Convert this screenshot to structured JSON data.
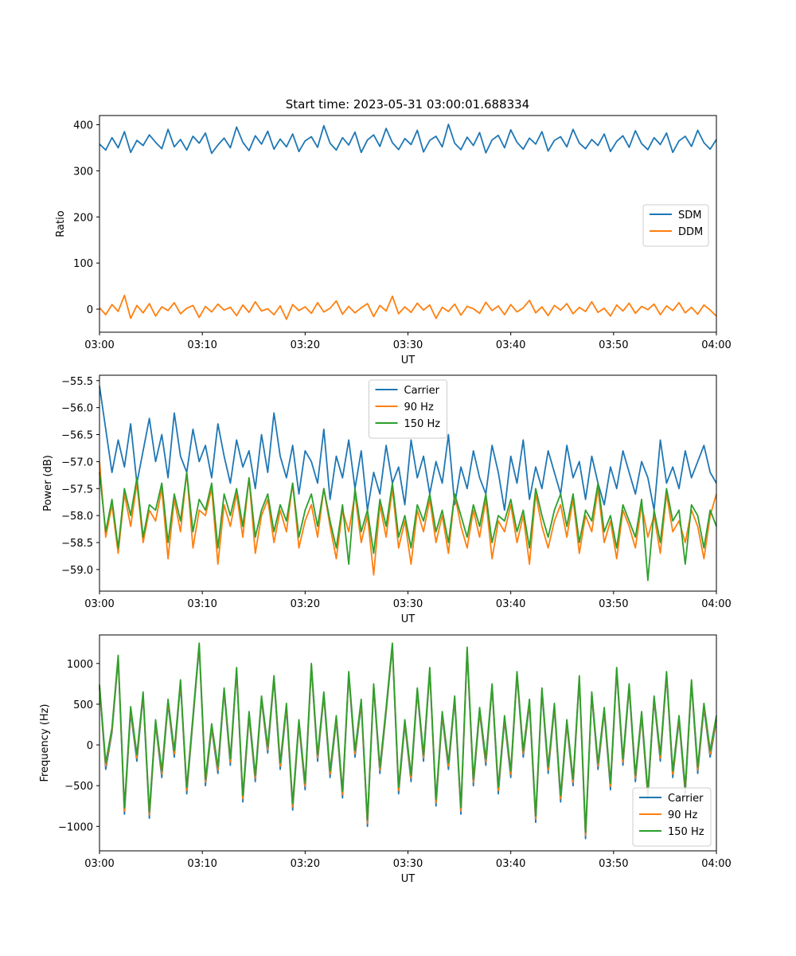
{
  "figure": {
    "title": "Start time: 2023-05-31 03:00:01.688334"
  },
  "colors": {
    "blue": "#1f77b4",
    "orange": "#ff7f0e",
    "green": "#2ca02c"
  },
  "chart_data": [
    {
      "type": "line",
      "xlabel": "UT",
      "ylabel": "Ratio",
      "xlim": [
        0,
        60
      ],
      "ylim": [
        -50,
        420
      ],
      "xticks": [
        0,
        10,
        20,
        30,
        40,
        50,
        60
      ],
      "xtick_labels": [
        "03:00",
        "03:10",
        "03:20",
        "03:30",
        "03:40",
        "03:50",
        "04:00"
      ],
      "yticks": [
        0,
        100,
        200,
        300,
        400
      ],
      "ytick_labels": [
        "0",
        "100",
        "200",
        "300",
        "400"
      ],
      "legend": "center-right",
      "grid": false,
      "series": [
        {
          "name": "SDM",
          "color": "#1f77b4",
          "values": [
            358,
            345,
            372,
            350,
            385,
            340,
            366,
            355,
            378,
            362,
            348,
            390,
            352,
            368,
            345,
            375,
            360,
            382,
            338,
            356,
            371,
            350,
            395,
            362,
            344,
            376,
            358,
            386,
            347,
            369,
            352,
            380,
            342,
            365,
            374,
            351,
            398,
            360,
            345,
            372,
            356,
            384,
            340,
            367,
            378,
            353,
            392,
            361,
            346,
            370,
            357,
            388,
            341,
            366,
            375,
            352,
            401,
            360,
            346,
            373,
            355,
            383,
            339,
            367,
            377,
            350,
            389,
            362,
            347,
            371,
            358,
            385,
            343,
            366,
            374,
            352,
            390,
            360,
            348,
            368,
            355,
            380,
            342,
            364,
            376,
            351,
            387,
            359,
            346,
            372,
            357,
            382,
            340,
            365,
            375,
            353,
            388,
            361,
            347,
            368
          ]
        },
        {
          "name": "DDM",
          "color": "#ff7f0e",
          "values": [
            3,
            -12,
            10,
            -5,
            30,
            -20,
            8,
            -8,
            12,
            -15,
            5,
            -3,
            14,
            -10,
            2,
            8,
            -18,
            6,
            -6,
            11,
            -2,
            4,
            -14,
            9,
            -7,
            16,
            -4,
            1,
            -12,
            7,
            -22,
            10,
            -3,
            5,
            -9,
            14,
            -6,
            2,
            18,
            -11,
            6,
            -8,
            3,
            12,
            -16,
            8,
            -4,
            28,
            -10,
            5,
            -7,
            13,
            -2,
            9,
            -20,
            4,
            -5,
            11,
            -13,
            6,
            1,
            -9,
            15,
            -3,
            7,
            -12,
            10,
            -6,
            3,
            19,
            -8,
            5,
            -14,
            8,
            -2,
            12,
            -10,
            4,
            -5,
            16,
            -7,
            2,
            -15,
            9,
            -4,
            13,
            -9,
            6,
            -1,
            11,
            -12,
            7,
            -3,
            14,
            -8,
            4,
            -11,
            9,
            -2,
            -15
          ]
        }
      ]
    },
    {
      "type": "line",
      "xlabel": "UT",
      "ylabel": "Power (dB)",
      "xlim": [
        0,
        60
      ],
      "ylim": [
        -59.4,
        -55.4
      ],
      "xticks": [
        0,
        10,
        20,
        30,
        40,
        50,
        60
      ],
      "xtick_labels": [
        "03:00",
        "03:10",
        "03:20",
        "03:30",
        "03:40",
        "03:50",
        "04:00"
      ],
      "yticks": [
        -55.5,
        -56.0,
        -56.5,
        -57.0,
        -57.5,
        -58.0,
        -58.5,
        -59.0
      ],
      "ytick_labels": [
        "−55.5",
        "−56.0",
        "−56.5",
        "−57.0",
        "−57.5",
        "−58.0",
        "−58.5",
        "−59.0"
      ],
      "legend": "top-center",
      "grid": false,
      "series": [
        {
          "name": "Carrier",
          "color": "#1f77b4",
          "values": [
            -55.6,
            -56.4,
            -57.2,
            -56.6,
            -57.1,
            -56.3,
            -57.4,
            -56.8,
            -56.2,
            -57.0,
            -56.5,
            -57.3,
            -56.1,
            -56.9,
            -57.2,
            -56.4,
            -57.0,
            -56.7,
            -57.3,
            -56.3,
            -56.9,
            -57.4,
            -56.6,
            -57.1,
            -56.8,
            -57.5,
            -56.5,
            -57.2,
            -56.1,
            -56.9,
            -57.3,
            -56.7,
            -57.6,
            -56.8,
            -57.0,
            -57.4,
            -56.4,
            -57.7,
            -56.9,
            -57.3,
            -56.6,
            -57.5,
            -56.8,
            -57.9,
            -57.2,
            -57.6,
            -56.7,
            -57.4,
            -57.1,
            -57.8,
            -56.6,
            -57.3,
            -56.9,
            -57.6,
            -57.0,
            -57.4,
            -56.5,
            -57.8,
            -57.1,
            -57.5,
            -56.8,
            -57.3,
            -57.6,
            -56.7,
            -57.2,
            -57.9,
            -56.9,
            -57.4,
            -56.6,
            -57.7,
            -57.1,
            -57.5,
            -56.8,
            -57.2,
            -57.6,
            -56.7,
            -57.3,
            -57.0,
            -57.7,
            -56.9,
            -57.4,
            -57.8,
            -57.1,
            -57.5,
            -56.8,
            -57.2,
            -57.6,
            -57.0,
            -57.3,
            -57.9,
            -56.6,
            -57.4,
            -57.1,
            -57.5,
            -56.8,
            -57.3,
            -57.0,
            -56.7,
            -57.2,
            -57.4
          ]
        },
        {
          "name": "90 Hz",
          "color": "#ff7f0e",
          "values": [
            -57.0,
            -58.4,
            -57.8,
            -58.7,
            -57.6,
            -58.2,
            -57.4,
            -58.5,
            -57.9,
            -58.1,
            -57.5,
            -58.8,
            -57.7,
            -58.3,
            -57.2,
            -58.6,
            -57.9,
            -58.0,
            -57.5,
            -58.9,
            -57.8,
            -58.2,
            -57.6,
            -58.4,
            -57.3,
            -58.7,
            -58.0,
            -57.7,
            -58.5,
            -57.9,
            -58.3,
            -57.4,
            -58.6,
            -58.1,
            -57.8,
            -58.4,
            -57.5,
            -58.2,
            -58.8,
            -57.9,
            -58.3,
            -57.6,
            -58.5,
            -58.0,
            -59.1,
            -57.8,
            -58.4,
            -57.5,
            -58.6,
            -58.1,
            -58.9,
            -57.9,
            -58.3,
            -57.7,
            -58.5,
            -58.0,
            -58.7,
            -57.6,
            -58.2,
            -58.6,
            -57.9,
            -58.4,
            -57.7,
            -58.8,
            -58.1,
            -58.3,
            -57.8,
            -58.5,
            -58.0,
            -58.9,
            -57.6,
            -58.2,
            -58.6,
            -58.1,
            -57.8,
            -58.4,
            -57.7,
            -58.7,
            -58.0,
            -58.3,
            -57.5,
            -58.5,
            -58.1,
            -58.8,
            -57.9,
            -58.2,
            -58.6,
            -57.8,
            -58.4,
            -58.0,
            -58.7,
            -57.6,
            -58.3,
            -58.1,
            -58.5,
            -57.9,
            -58.2,
            -58.8,
            -58.0,
            -57.6
          ]
        },
        {
          "name": "150 Hz",
          "color": "#2ca02c",
          "values": [
            -57.2,
            -58.3,
            -57.7,
            -58.6,
            -57.5,
            -58.0,
            -57.3,
            -58.4,
            -57.8,
            -57.9,
            -57.4,
            -58.5,
            -57.6,
            -58.1,
            -57.2,
            -58.3,
            -57.7,
            -57.9,
            -57.4,
            -58.6,
            -57.6,
            -58.0,
            -57.5,
            -58.2,
            -57.3,
            -58.4,
            -57.9,
            -57.6,
            -58.3,
            -57.8,
            -58.1,
            -57.4,
            -58.4,
            -57.9,
            -57.6,
            -58.2,
            -57.5,
            -58.1,
            -58.6,
            -57.8,
            -58.9,
            -57.5,
            -58.3,
            -57.9,
            -58.7,
            -57.7,
            -58.2,
            -57.4,
            -58.4,
            -58.0,
            -58.6,
            -57.8,
            -58.1,
            -57.6,
            -58.3,
            -57.9,
            -58.5,
            -57.6,
            -58.0,
            -58.4,
            -57.8,
            -58.2,
            -57.6,
            -58.5,
            -58.0,
            -58.1,
            -57.7,
            -58.3,
            -57.9,
            -58.6,
            -57.5,
            -58.0,
            -58.4,
            -57.9,
            -57.6,
            -58.2,
            -57.6,
            -58.5,
            -57.9,
            -58.1,
            -57.4,
            -58.3,
            -58.0,
            -58.6,
            -57.8,
            -58.1,
            -58.4,
            -57.7,
            -59.2,
            -57.9,
            -58.5,
            -57.5,
            -58.1,
            -57.9,
            -58.9,
            -57.8,
            -58.0,
            -58.6,
            -57.9,
            -58.2
          ]
        }
      ]
    },
    {
      "type": "line",
      "xlabel": "UT",
      "ylabel": "Frequency (Hz)",
      "xlim": [
        0,
        60
      ],
      "ylim": [
        -1300,
        1350
      ],
      "xticks": [
        0,
        10,
        20,
        30,
        40,
        50,
        60
      ],
      "xtick_labels": [
        "03:00",
        "03:10",
        "03:20",
        "03:30",
        "03:40",
        "03:50",
        "04:00"
      ],
      "yticks": [
        1000,
        500,
        0,
        -500,
        -1000
      ],
      "ytick_labels": [
        "1000",
        "500",
        "0",
        "−500",
        "−1000"
      ],
      "legend": "bottom-right",
      "grid": false,
      "series": [
        {
          "name": "Carrier",
          "color": "#1f77b4",
          "values": [
            700,
            -300,
            150,
            1050,
            -850,
            400,
            -200,
            600,
            -900,
            250,
            -400,
            500,
            -150,
            750,
            -600,
            300,
            1200,
            -500,
            200,
            -350,
            650,
            -250,
            900,
            -700,
            350,
            -450,
            550,
            -100,
            800,
            -300,
            450,
            -800,
            250,
            -550,
            950,
            -200,
            600,
            -400,
            300,
            -650,
            850,
            -150,
            500,
            -1000,
            700,
            -350,
            400,
            1200,
            -600,
            250,
            -450,
            650,
            -200,
            900,
            -750,
            350,
            -300,
            550,
            -850,
            1150,
            -500,
            400,
            -250,
            700,
            -600,
            300,
            -400,
            850,
            -150,
            500,
            -950,
            650,
            -350,
            450,
            -700,
            250,
            -500,
            800,
            -1150,
            600,
            -300,
            400,
            -550,
            900,
            -250,
            700,
            -450,
            350,
            -650,
            550,
            -200,
            850,
            -400,
            300,
            -600,
            750,
            -350,
            450,
            -150,
            300
          ]
        },
        {
          "name": "90 Hz",
          "color": "#ff7f0e",
          "values": [
            720,
            -260,
            180,
            1080,
            -810,
            440,
            -160,
            630,
            -860,
            280,
            -360,
            530,
            -110,
            780,
            -560,
            330,
            1230,
            -460,
            230,
            -310,
            680,
            -210,
            930,
            -660,
            380,
            -410,
            580,
            -60,
            830,
            -260,
            480,
            -760,
            280,
            -510,
            980,
            -160,
            630,
            -360,
            330,
            -610,
            880,
            -110,
            530,
            -960,
            730,
            -310,
            430,
            1230,
            -560,
            280,
            -410,
            680,
            -160,
            930,
            -710,
            380,
            -260,
            580,
            -810,
            1180,
            -460,
            430,
            -210,
            730,
            -560,
            330,
            -360,
            880,
            -110,
            530,
            -910,
            680,
            -310,
            480,
            -660,
            280,
            -460,
            830,
            -1110,
            630,
            -260,
            430,
            -510,
            930,
            -210,
            730,
            -410,
            380,
            -610,
            580,
            -160,
            880,
            -360,
            330,
            -560,
            780,
            -310,
            480,
            -110,
            330
          ]
        },
        {
          "name": "150 Hz",
          "color": "#2ca02c",
          "values": [
            740,
            -220,
            210,
            1100,
            -770,
            470,
            -120,
            650,
            -820,
            310,
            -320,
            560,
            -70,
            800,
            -520,
            360,
            1250,
            -420,
            260,
            -270,
            700,
            -170,
            950,
            -620,
            410,
            -370,
            600,
            -20,
            850,
            -220,
            510,
            -720,
            310,
            -470,
            1000,
            -120,
            650,
            -320,
            360,
            -570,
            900,
            -70,
            560,
            -920,
            750,
            -270,
            460,
            1250,
            -520,
            310,
            -370,
            700,
            -120,
            950,
            -670,
            410,
            -220,
            600,
            -770,
            1200,
            -420,
            460,
            -170,
            750,
            -520,
            360,
            -320,
            900,
            -70,
            560,
            -870,
            700,
            -270,
            510,
            -620,
            310,
            -420,
            850,
            -1070,
            650,
            -220,
            460,
            -470,
            950,
            -170,
            750,
            -370,
            410,
            -570,
            600,
            -120,
            900,
            -320,
            360,
            -520,
            800,
            -270,
            510,
            -70,
            360
          ]
        }
      ]
    }
  ]
}
